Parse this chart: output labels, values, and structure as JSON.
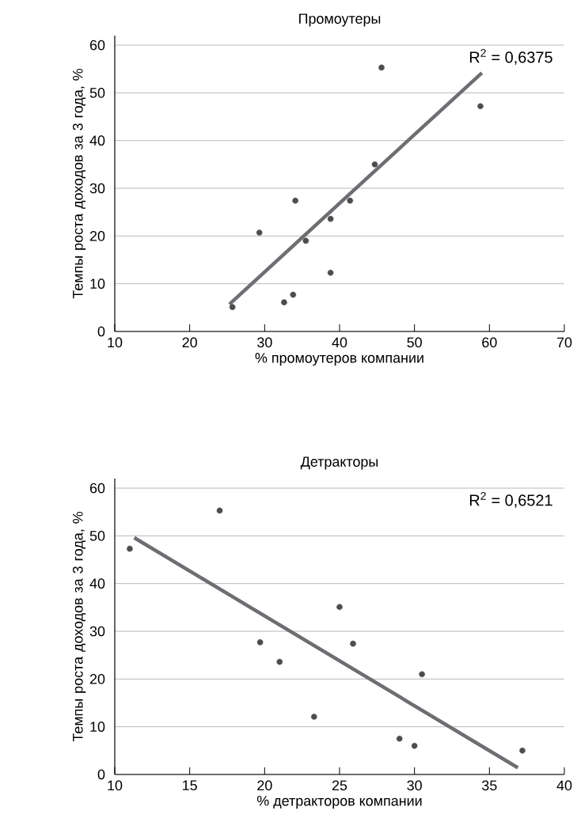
{
  "chart_data": [
    {
      "type": "scatter",
      "title": "Промоутеры",
      "xlabel": "% промоутеров компании",
      "ylabel": "Темпы роста доходов за 3 года, %",
      "annotations": [
        "R$^{2}$ = 0,6375"
      ],
      "xlim": [
        10,
        70
      ],
      "xticks": [
        10,
        20,
        30,
        40,
        50,
        60,
        70
      ],
      "ylim": [
        0,
        62
      ],
      "yticks": [
        0,
        10,
        20,
        30,
        40,
        50,
        60
      ],
      "grid": "y",
      "marker": "circle",
      "series": [
        {
          "color": "#4d4d4f",
          "x": [
            25.7,
            29.3,
            32.6,
            33.8,
            34.1,
            35.5,
            38.8,
            38.8,
            41.4,
            44.7,
            45.6,
            58.8
          ],
          "values": [
            5.1,
            20.7,
            6.1,
            7.7,
            27.4,
            19.0,
            23.6,
            12.3,
            27.4,
            35.0,
            55.3,
            47.2
          ]
        },
        {
          "type": "line",
          "color": "#6d6e71",
          "marker": "none",
          "x": [
            25.3,
            59.0
          ],
          "values": [
            5.7,
            54.2
          ]
        }
      ]
    },
    {
      "type": "scatter",
      "title": "Детракторы",
      "xlabel": "% детракторов компании",
      "ylabel": "Темпы роста доходов за 3 года, %",
      "annotations": [
        "R$^{2}$ = 0,6521"
      ],
      "xlim": [
        10,
        40
      ],
      "xticks": [
        10,
        15,
        20,
        25,
        30,
        35,
        40
      ],
      "ylim": [
        0,
        62
      ],
      "yticks": [
        0,
        10,
        20,
        30,
        40,
        50,
        60
      ],
      "grid": "y",
      "marker": "circle",
      "series": [
        {
          "color": "#4d4d4f",
          "x": [
            11.0,
            17.0,
            19.7,
            21.0,
            23.3,
            25.0,
            25.9,
            30.5,
            29.0,
            30.0,
            37.2
          ],
          "values": [
            47.3,
            55.3,
            27.7,
            23.6,
            12.1,
            35.1,
            27.4,
            21.0,
            7.5,
            6.0,
            5.0
          ]
        },
        {
          "type": "line",
          "color": "#6d6e71",
          "marker": "none",
          "x": [
            11.3,
            36.9
          ],
          "values": [
            49.6,
            1.4
          ]
        }
      ]
    }
  ]
}
